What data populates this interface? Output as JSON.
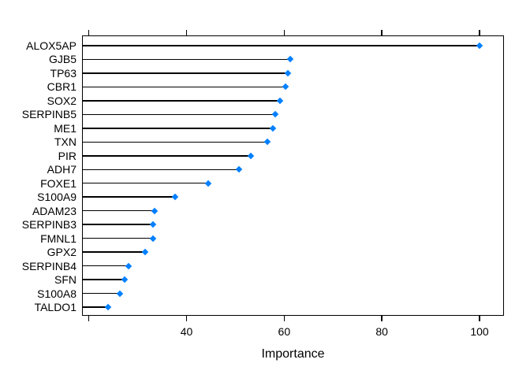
{
  "chart_data": {
    "type": "scatter",
    "variant": "cleveland-dotplot",
    "title": "",
    "xlabel": "Importance",
    "ylabel": "",
    "categories": [
      "ALOX5AP",
      "GJB5",
      "TP63",
      "CBR1",
      "SOX2",
      "SERPINB5",
      "ME1",
      "TXN",
      "PIR",
      "ADH7",
      "FOXE1",
      "S100A9",
      "ADAM23",
      "SERPINB3",
      "FMNL1",
      "GPX2",
      "SERPINB4",
      "SFN",
      "S100A8",
      "TALDO1"
    ],
    "values": [
      100,
      61.2,
      60.7,
      60.2,
      59.2,
      58.2,
      57.7,
      56.6,
      53.2,
      50.8,
      44.5,
      37.6,
      33.5,
      33.1,
      33.1,
      31.6,
      28.1,
      27.3,
      26.3,
      23.9
    ],
    "xlim": [
      18.6,
      105.0
    ],
    "ticks": [
      20,
      40,
      60,
      80,
      100
    ],
    "tick_labels": [
      "",
      "40",
      "60",
      "80",
      "100"
    ],
    "grid": false,
    "legend": "none"
  },
  "colors": {
    "dot": "#0080ff",
    "line": "#000000",
    "box": "#000000",
    "background": "#ffffff",
    "text": "#000000"
  }
}
